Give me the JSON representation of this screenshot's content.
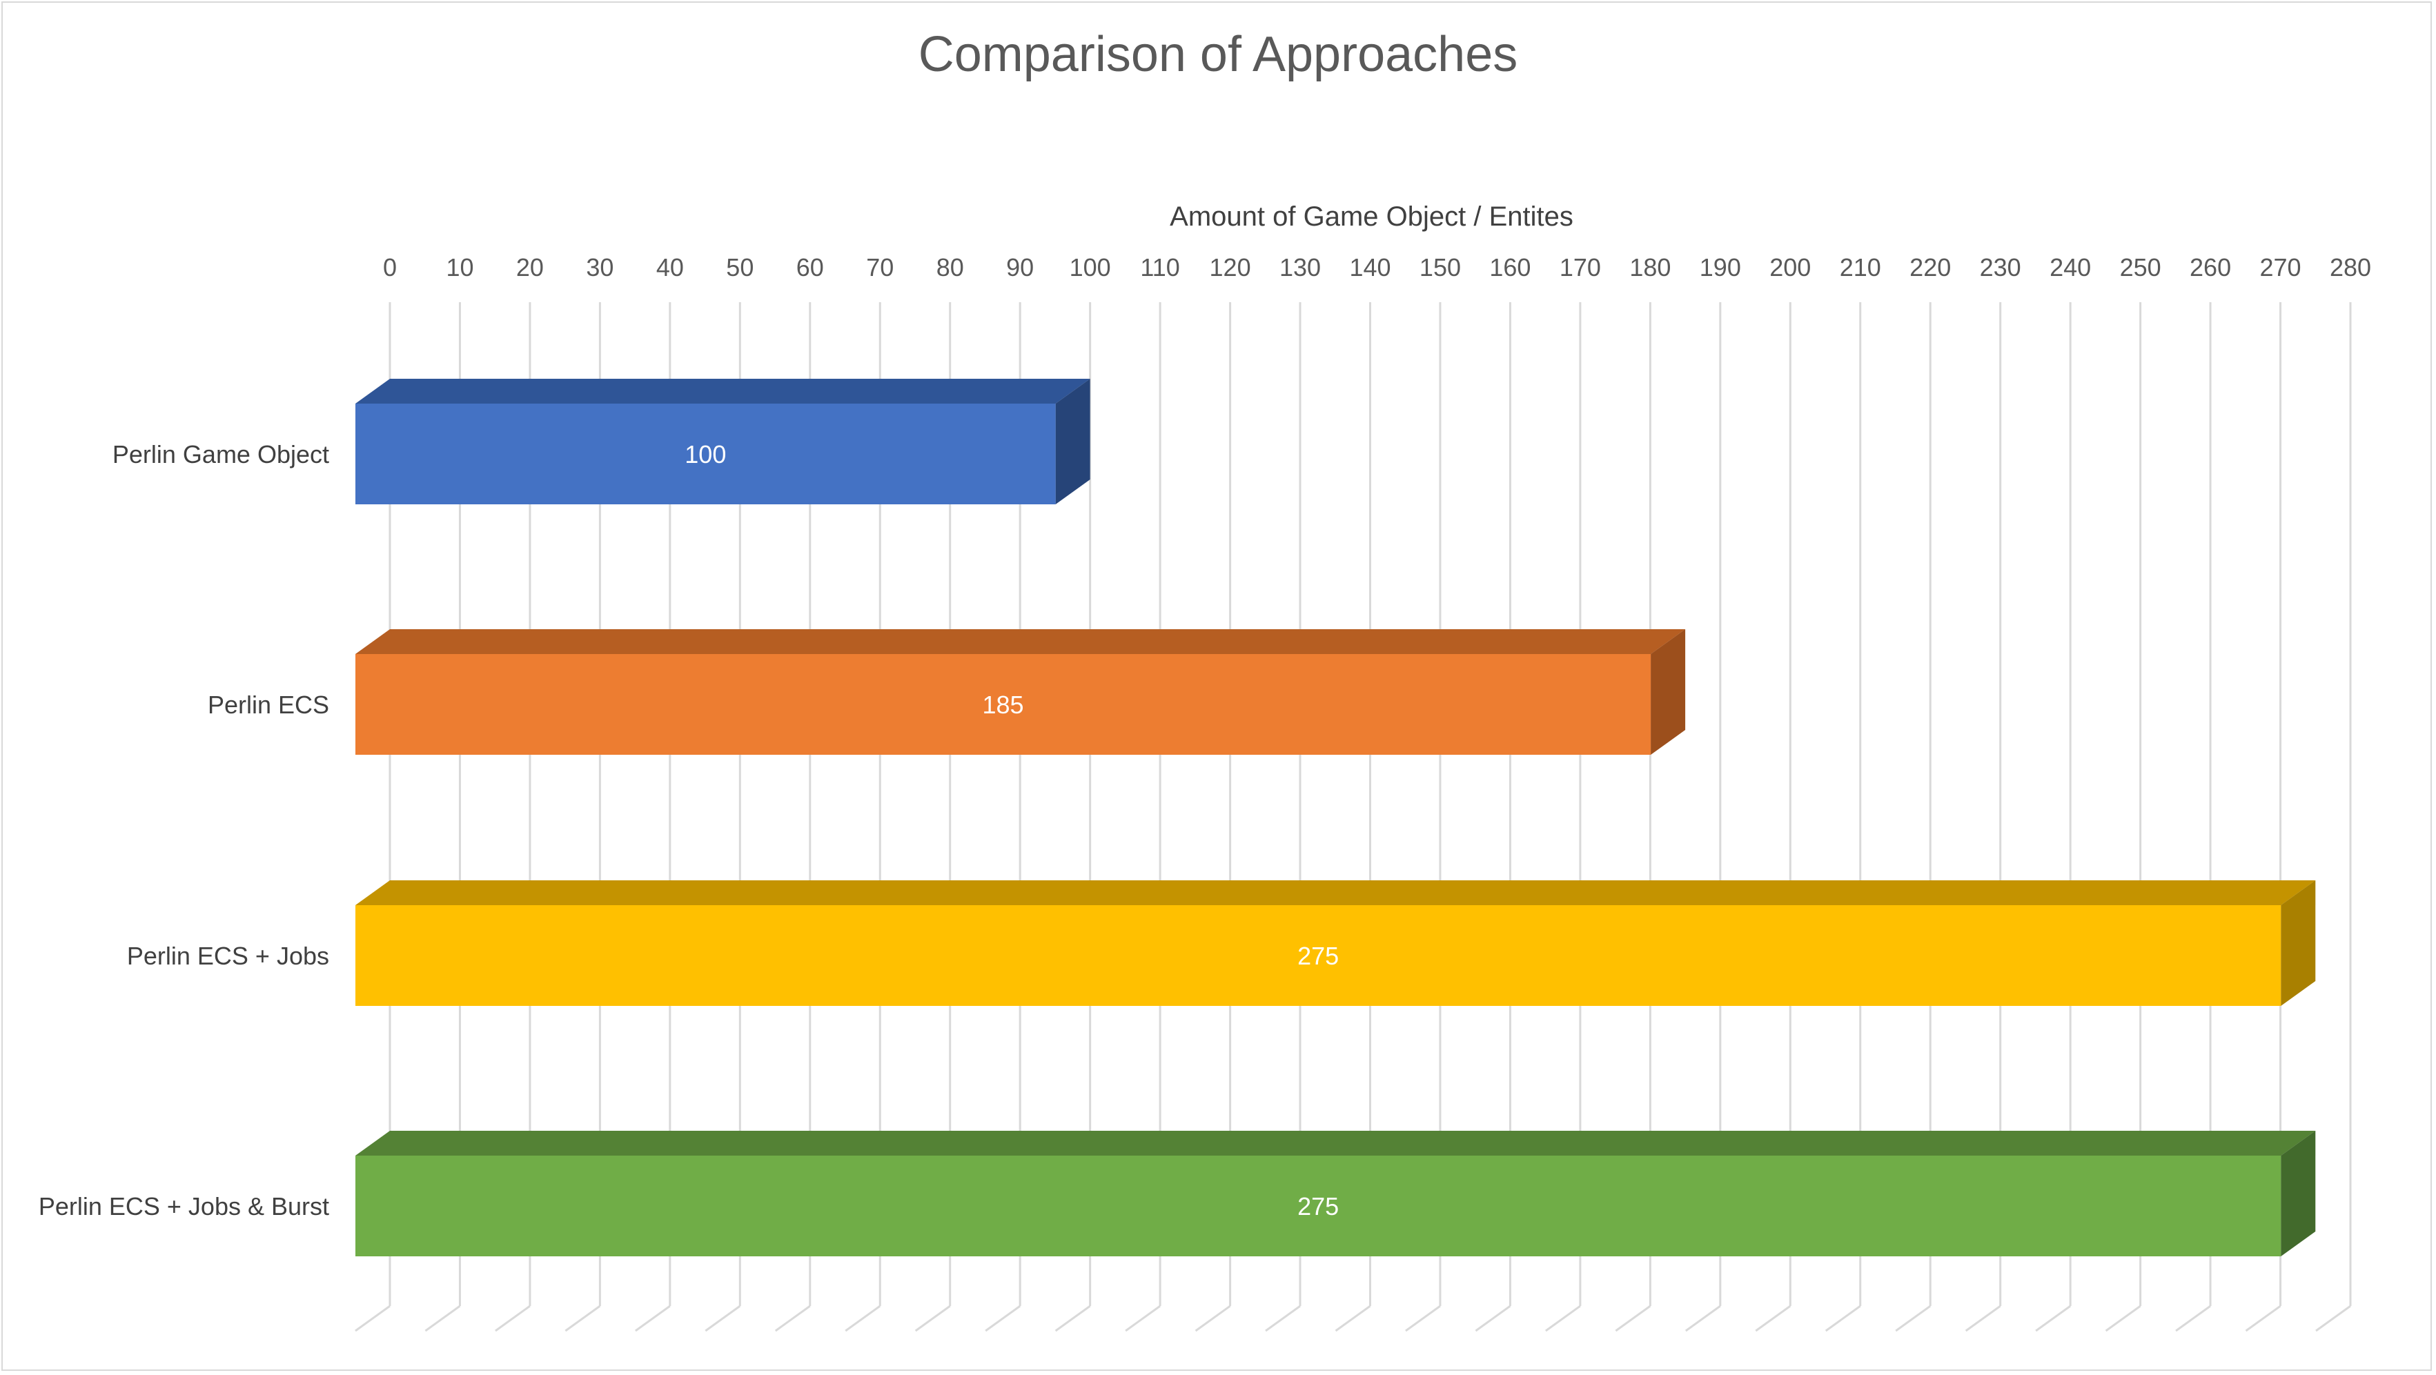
{
  "chart_data": {
    "type": "bar",
    "orientation": "horizontal",
    "style": "3d",
    "title": "Comparison of Approaches",
    "xlabel": "Amount of Game Object / Entites",
    "ylabel": "",
    "xlim": [
      0,
      280
    ],
    "tick_step": 10,
    "x_axis_position": "top",
    "grid": true,
    "categories": [
      "Perlin Game Object",
      "Perlin ECS",
      "Perlin ECS + Jobs",
      "Perlin ECS + Jobs & Burst"
    ],
    "values": [
      100,
      185,
      275,
      275
    ],
    "data_labels": [
      "100",
      "185",
      "275",
      "275"
    ],
    "colors": [
      "#4472c4",
      "#ed7d31",
      "#ffc000",
      "#70ad47"
    ],
    "top_colors": [
      "#2f5597",
      "#b65e22",
      "#c49300",
      "#548235"
    ],
    "side_colors": [
      "#264478",
      "#9c4f1c",
      "#a98000",
      "#426a2c"
    ]
  }
}
